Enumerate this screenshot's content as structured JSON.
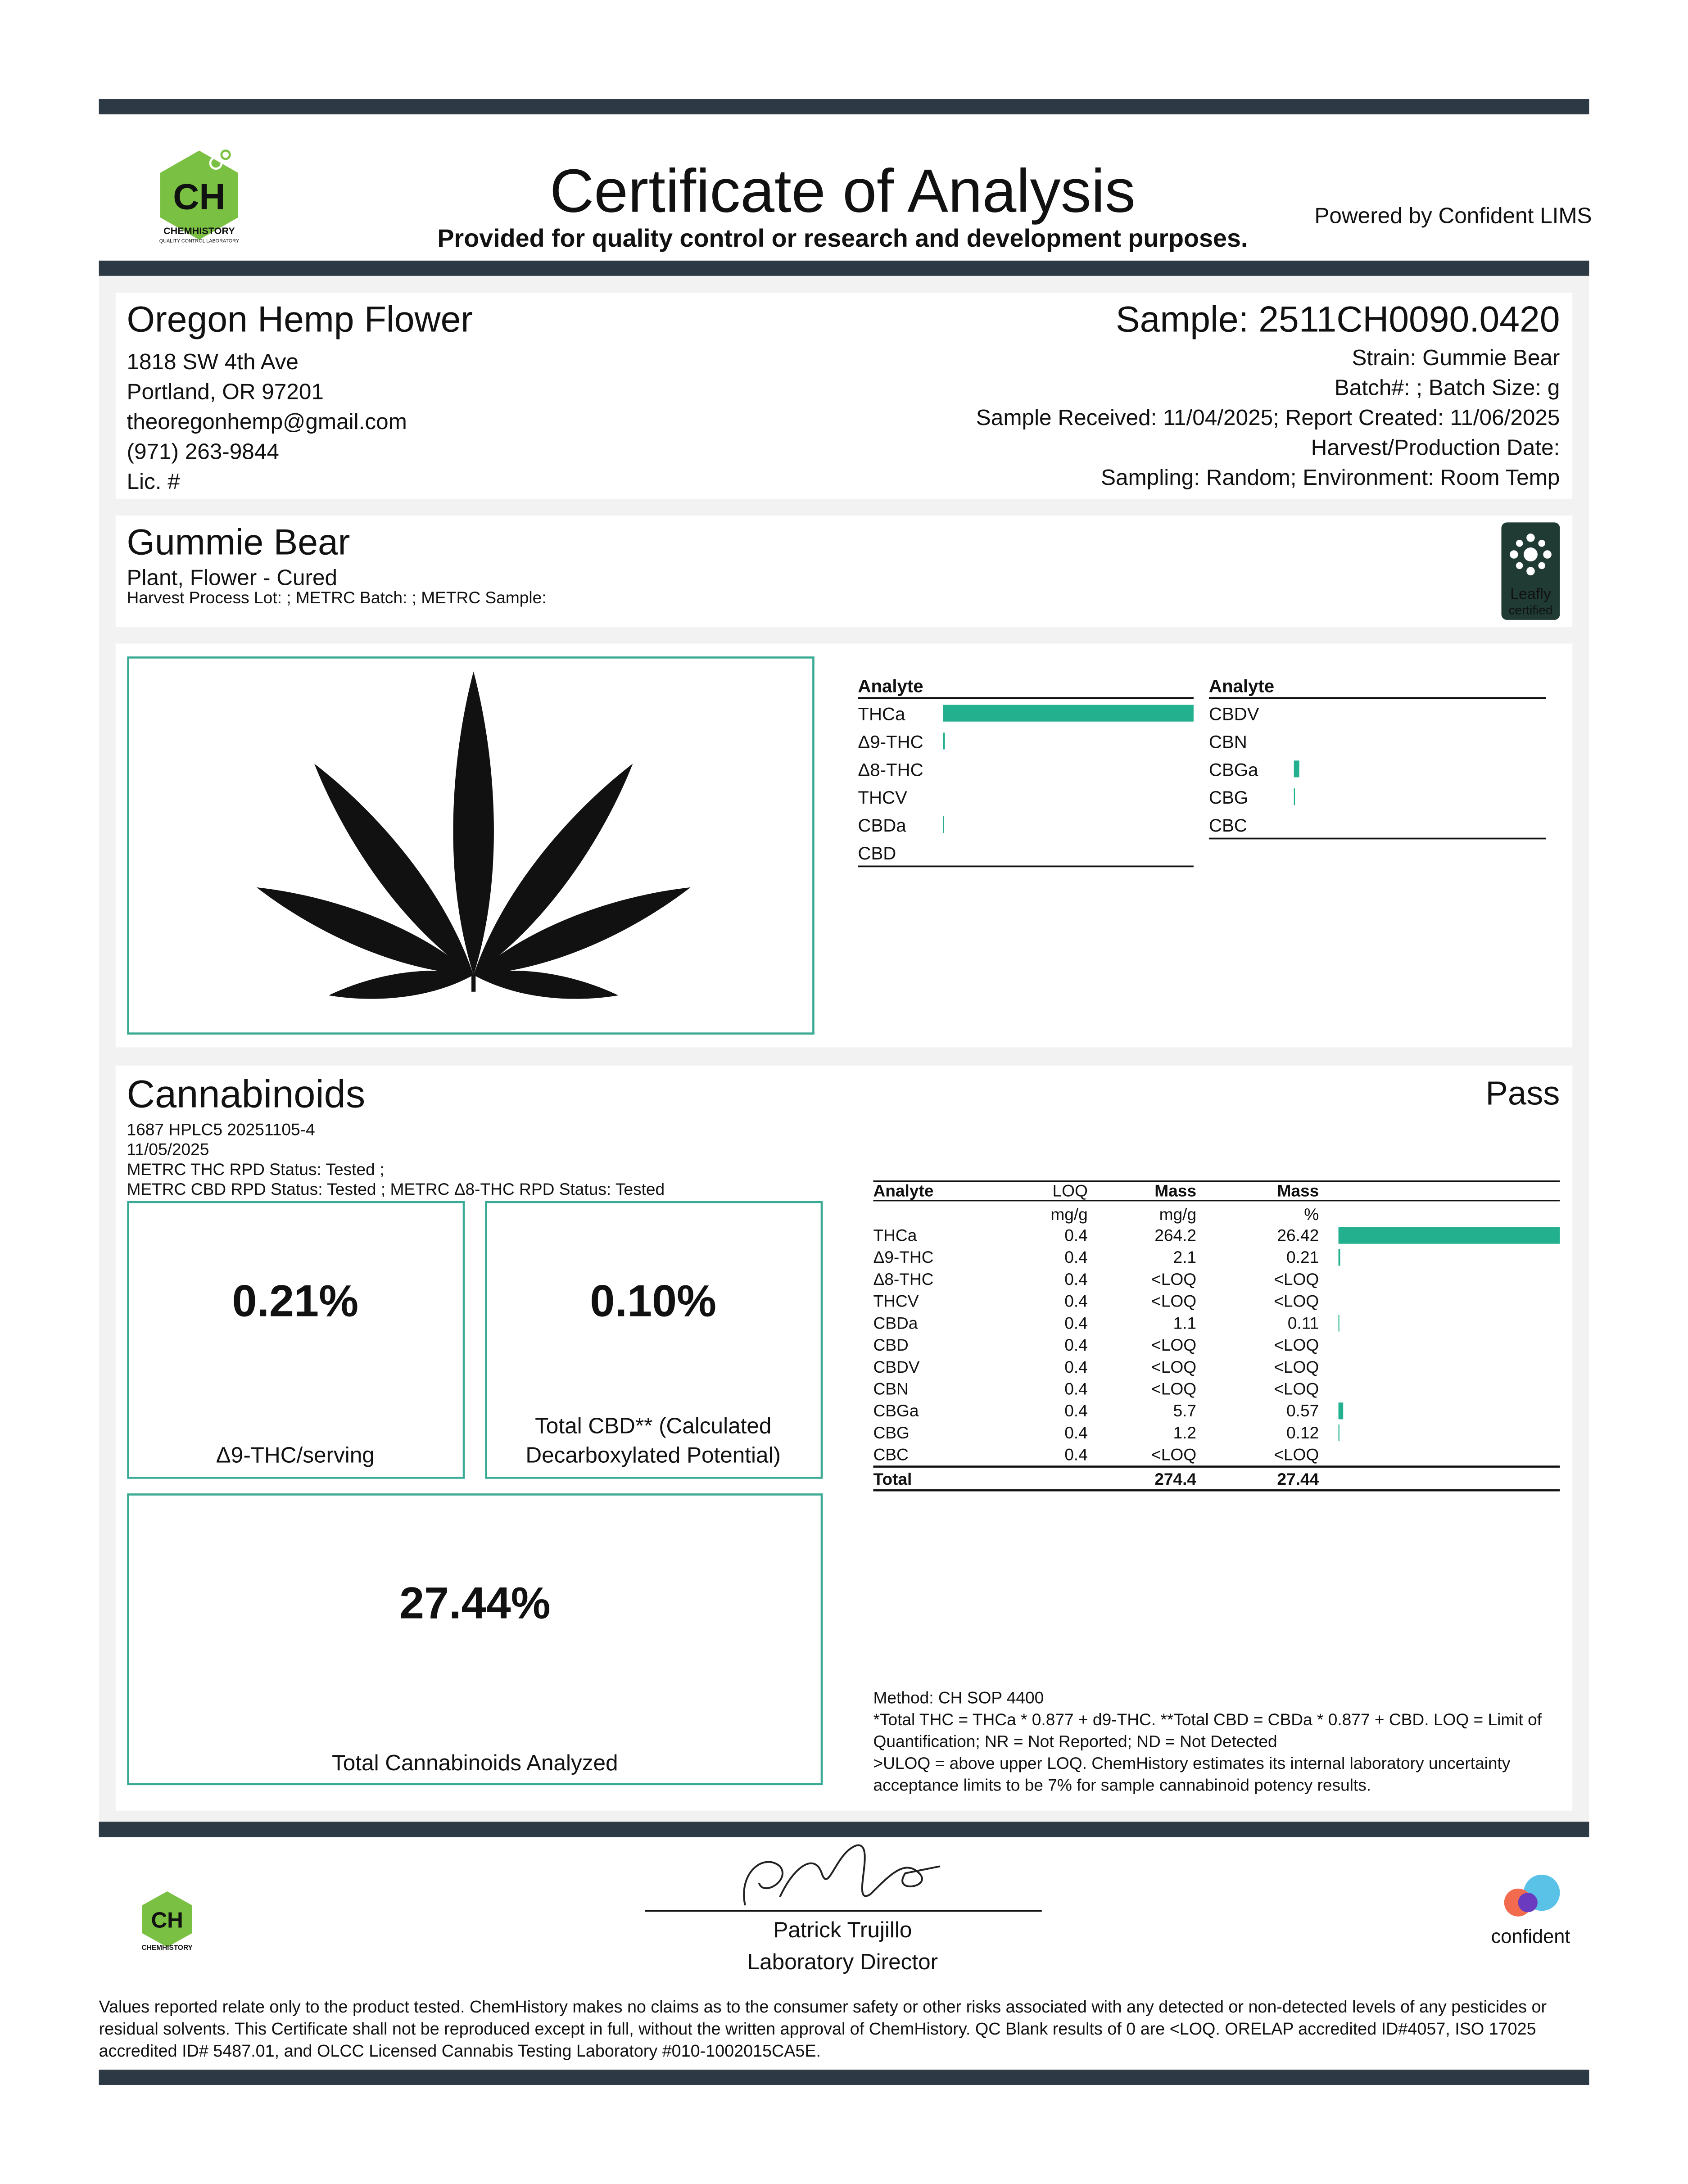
{
  "header": {
    "title": "Certificate of Analysis",
    "subtitle": "Provided for quality control or research and development purposes.",
    "powered_by": "Powered by Confident LIMS"
  },
  "logos": {
    "ch": "CH",
    "chemhistory": "CHEMHISTORY",
    "chemhistory_sub": "QUALITY CONTROL LABORATORY",
    "leafly": "Leafly",
    "leafly_sub": "certified",
    "confident": "confident"
  },
  "client": {
    "name": "Oregon Hemp Flower",
    "lines": [
      "1818 SW 4th Ave",
      "Portland, OR 97201",
      "theoregonhemp@gmail.com",
      "(971) 263-9844",
      "Lic. #"
    ]
  },
  "sample": {
    "id": "Sample: 2511CH0090.0420",
    "lines": [
      "Strain: Gummie Bear",
      "Batch#: ; Batch Size:  g",
      "Sample Received: 11/04/2025; Report Created: 11/06/2025",
      "Harvest/Production Date: ",
      "Sampling: Random; Environment: Room Temp"
    ]
  },
  "product": {
    "name": "Gummie Bear",
    "category": "Plant, Flower - Cured",
    "lot": "Harvest Process Lot: ; METRC Batch: ; METRC Sample:"
  },
  "cannabinoids": {
    "title": "Cannabinoids",
    "status": "Pass",
    "meta": [
      "1687 HPLC5 20251105-4",
      "11/05/2025",
      "METRC THC RPD Status: Tested ;",
      "METRC CBD RPD Status: Tested ; METRC Δ8-THC RPD Status: Tested"
    ],
    "summary": [
      {
        "value": "0.21%",
        "label": [
          "Δ9-THC/serving"
        ]
      },
      {
        "value": "0.10%",
        "label": [
          "Total CBD** (Calculated",
          "Decarboxylated Potential)"
        ]
      },
      {
        "value": "27.44%",
        "label": [
          "Total Cannabinoids Analyzed"
        ]
      }
    ],
    "table": {
      "headers": [
        "Analyte",
        "LOQ",
        "Mass",
        "Mass"
      ],
      "units": [
        "mg/g",
        "mg/g",
        "%"
      ],
      "rows": [
        [
          "THCa",
          0.4,
          264.2,
          26.42
        ],
        [
          "Δ9-THC",
          0.4,
          2.1,
          0.21
        ],
        [
          "Δ8-THC",
          0.4,
          "<LOQ",
          "<LOQ"
        ],
        [
          "THCV",
          0.4,
          "<LOQ",
          "<LOQ"
        ],
        [
          "CBDa",
          0.4,
          1.1,
          0.11
        ],
        [
          "CBD",
          0.4,
          "<LOQ",
          "<LOQ"
        ],
        [
          "CBDV",
          0.4,
          "<LOQ",
          "<LOQ"
        ],
        [
          "CBN",
          0.4,
          "<LOQ",
          "<LOQ"
        ],
        [
          "CBGa",
          0.4,
          5.7,
          0.57
        ],
        [
          "CBG",
          0.4,
          1.2,
          0.12
        ],
        [
          "CBC",
          0.4,
          "<LOQ",
          "<LOQ"
        ]
      ],
      "total": [
        "Total",
        274.4,
        27.44
      ]
    },
    "notes": [
      "Method: CH SOP 4400",
      "*Total THC = THCa * 0.877 + d9-THC. **Total CBD = CBDa * 0.877 + CBD. LOQ = Limit of",
      "Quantification; NR = Not Reported; ND = Not Detected",
      ">ULOQ = above upper LOQ. ChemHistory estimates its internal laboratory uncertainty",
      "acceptance limits to be 7% for sample cannabinoid potency results."
    ]
  },
  "signature": {
    "name": "Patrick Trujillo",
    "title": "Laboratory Director"
  },
  "footer": [
    "Values reported relate only to the product tested. ChemHistory makes no claims as to the consumer safety or other risks associated with any detected or non-detected levels of any pesticides or",
    "residual solvents. This Certificate shall not be reproduced except in full, without the written approval of ChemHistory. QC Blank results of 0 are <LOQ.  ORELAP accredited ID#4057, ISO 17025",
    "accredited ID# 5487.01, and OLCC Licensed Cannabis Testing Laboratory #010-1002015CA5E."
  ]
}
